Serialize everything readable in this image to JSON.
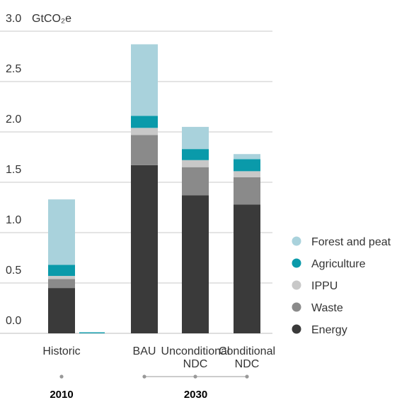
{
  "chart_data": {
    "type": "bar",
    "stacked": true,
    "unit_label": "GtCO₂e",
    "y_ticks": [
      "0.0",
      "0.5",
      "1.0",
      "1.5",
      "2.0",
      "2.5",
      "3.0"
    ],
    "ylim": [
      0,
      3.0
    ],
    "grid": true,
    "legend_position": "right",
    "categories": [
      {
        "label_lines": [
          "Historic"
        ]
      },
      {
        "label_lines": []
      },
      {
        "label_lines": [
          "BAU"
        ]
      },
      {
        "label_lines": [
          "Unconditional",
          "NDC"
        ]
      },
      {
        "label_lines": [
          "Conditional",
          "NDC"
        ]
      }
    ],
    "series": [
      {
        "name": "Energy",
        "color": "#3a3a3a",
        "values": [
          0.45,
          0.0,
          1.67,
          1.37,
          1.28
        ]
      },
      {
        "name": "Waste",
        "color": "#8a8a8a",
        "values": [
          0.09,
          0.0,
          0.3,
          0.28,
          0.27
        ]
      },
      {
        "name": "IPPU",
        "color": "#c8c8c8",
        "values": [
          0.03,
          0.0,
          0.07,
          0.07,
          0.06
        ]
      },
      {
        "name": "Agriculture",
        "color": "#0a9aaa",
        "values": [
          0.11,
          0.01,
          0.12,
          0.11,
          0.12
        ]
      },
      {
        "name": "Forest and peat",
        "color": "#a9d2dc",
        "values": [
          0.65,
          0.0,
          0.71,
          0.22,
          0.05
        ]
      }
    ],
    "legend_order": [
      "Forest and peat",
      "Agriculture",
      "IPPU",
      "Waste",
      "Energy"
    ],
    "year_groups": [
      {
        "label": "2010",
        "category_indices": [
          0
        ]
      },
      {
        "label": "2030",
        "category_indices": [
          2,
          3,
          4
        ]
      }
    ]
  }
}
